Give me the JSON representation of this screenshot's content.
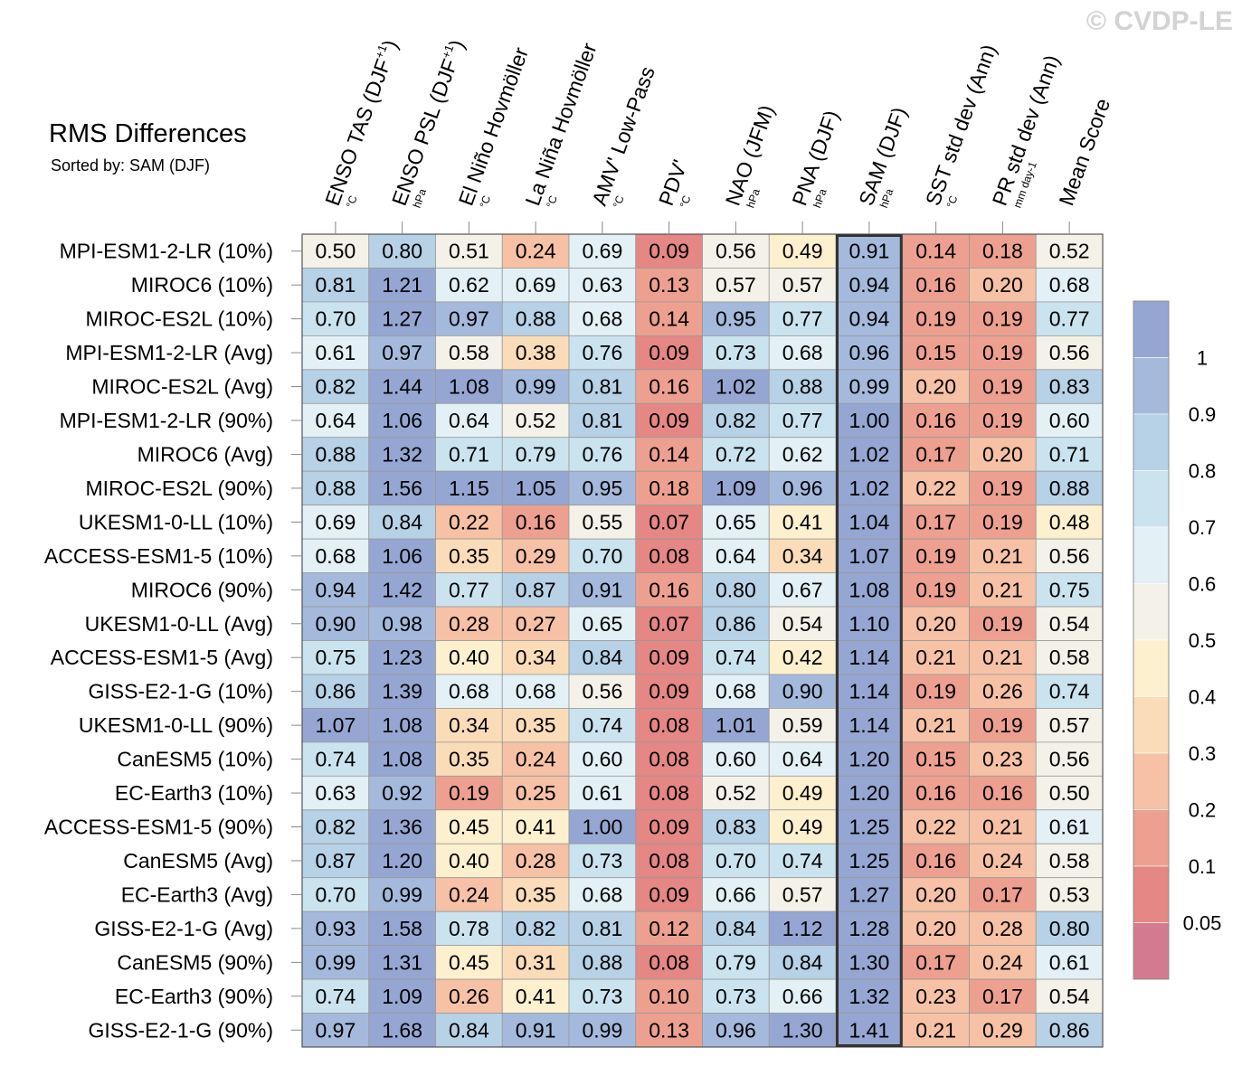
{
  "copyright": "© CVDP-LE",
  "chart_data": {
    "type": "heatmap",
    "title": "RMS Differences",
    "subtitle": "Sorted by: SAM (DJF)",
    "highlighted_column": "SAM (DJF)",
    "columns": [
      {
        "label": "ENSO TAS (DJF",
        "sup": "+1",
        "suffix": ")",
        "unit": "°C"
      },
      {
        "label": "ENSO PSL (DJF",
        "sup": "+1",
        "suffix": ")",
        "unit": "hPa"
      },
      {
        "label": "El Niño Hovmöller",
        "sup": "",
        "suffix": "",
        "unit": "°C"
      },
      {
        "label": "La Niña Hovmöller",
        "sup": "",
        "suffix": "",
        "unit": "°C"
      },
      {
        "label": "AMV' Low-Pass",
        "sup": "",
        "suffix": "",
        "unit": "°C"
      },
      {
        "label": "PDV'",
        "sup": "",
        "suffix": "",
        "unit": "°C"
      },
      {
        "label": "NAO (JFM)",
        "sup": "",
        "suffix": "",
        "unit": "hPa"
      },
      {
        "label": "PNA (DJF)",
        "sup": "",
        "suffix": "",
        "unit": "hPa"
      },
      {
        "label": "SAM (DJF)",
        "sup": "",
        "suffix": "",
        "unit": "hPa"
      },
      {
        "label": "SST std dev (Ann)",
        "sup": "",
        "suffix": "",
        "unit": "°C"
      },
      {
        "label": "PR std dev (Ann)",
        "sup": "",
        "suffix": "",
        "unit": "mm day-1"
      },
      {
        "label": "Mean Score",
        "sup": "",
        "suffix": "",
        "unit": ""
      }
    ],
    "rows": [
      "MPI-ESM1-2-LR (10%)",
      "MIROC6 (10%)",
      "MIROC-ES2L (10%)",
      "MPI-ESM1-2-LR (Avg)",
      "MIROC-ES2L (Avg)",
      "MPI-ESM1-2-LR (90%)",
      "MIROC6 (Avg)",
      "MIROC-ES2L (90%)",
      "UKESM1-0-LL (10%)",
      "ACCESS-ESM1-5 (10%)",
      "MIROC6 (90%)",
      "UKESM1-0-LL (Avg)",
      "ACCESS-ESM1-5 (Avg)",
      "GISS-E2-1-G (10%)",
      "UKESM1-0-LL (90%)",
      "CanESM5 (10%)",
      "EC-Earth3 (10%)",
      "ACCESS-ESM1-5 (90%)",
      "CanESM5 (Avg)",
      "EC-Earth3 (Avg)",
      "GISS-E2-1-G (Avg)",
      "CanESM5 (90%)",
      "EC-Earth3 (90%)",
      "GISS-E2-1-G (90%)"
    ],
    "values": [
      [
        "0.50",
        "0.80",
        "0.51",
        "0.24",
        "0.69",
        "0.09",
        "0.56",
        "0.49",
        "0.91",
        "0.14",
        "0.18",
        "0.52"
      ],
      [
        "0.81",
        "1.21",
        "0.62",
        "0.69",
        "0.63",
        "0.13",
        "0.57",
        "0.57",
        "0.94",
        "0.16",
        "0.20",
        "0.68"
      ],
      [
        "0.70",
        "1.27",
        "0.97",
        "0.88",
        "0.68",
        "0.14",
        "0.95",
        "0.77",
        "0.94",
        "0.19",
        "0.19",
        "0.77"
      ],
      [
        "0.61",
        "0.97",
        "0.58",
        "0.38",
        "0.76",
        "0.09",
        "0.73",
        "0.68",
        "0.96",
        "0.15",
        "0.19",
        "0.56"
      ],
      [
        "0.82",
        "1.44",
        "1.08",
        "0.99",
        "0.81",
        "0.16",
        "1.02",
        "0.88",
        "0.99",
        "0.20",
        "0.19",
        "0.83"
      ],
      [
        "0.64",
        "1.06",
        "0.64",
        "0.52",
        "0.81",
        "0.09",
        "0.82",
        "0.77",
        "1.00",
        "0.16",
        "0.19",
        "0.60"
      ],
      [
        "0.88",
        "1.32",
        "0.71",
        "0.79",
        "0.76",
        "0.14",
        "0.72",
        "0.62",
        "1.02",
        "0.17",
        "0.20",
        "0.71"
      ],
      [
        "0.88",
        "1.56",
        "1.15",
        "1.05",
        "0.95",
        "0.18",
        "1.09",
        "0.96",
        "1.02",
        "0.22",
        "0.19",
        "0.88"
      ],
      [
        "0.69",
        "0.84",
        "0.22",
        "0.16",
        "0.55",
        "0.07",
        "0.65",
        "0.41",
        "1.04",
        "0.17",
        "0.19",
        "0.48"
      ],
      [
        "0.68",
        "1.06",
        "0.35",
        "0.29",
        "0.70",
        "0.08",
        "0.64",
        "0.34",
        "1.07",
        "0.19",
        "0.21",
        "0.56"
      ],
      [
        "0.94",
        "1.42",
        "0.77",
        "0.87",
        "0.91",
        "0.16",
        "0.80",
        "0.67",
        "1.08",
        "0.19",
        "0.21",
        "0.75"
      ],
      [
        "0.90",
        "0.98",
        "0.28",
        "0.27",
        "0.65",
        "0.07",
        "0.86",
        "0.54",
        "1.10",
        "0.20",
        "0.19",
        "0.54"
      ],
      [
        "0.75",
        "1.23",
        "0.40",
        "0.34",
        "0.84",
        "0.09",
        "0.74",
        "0.42",
        "1.14",
        "0.21",
        "0.21",
        "0.58"
      ],
      [
        "0.86",
        "1.39",
        "0.68",
        "0.68",
        "0.56",
        "0.09",
        "0.68",
        "0.90",
        "1.14",
        "0.19",
        "0.26",
        "0.74"
      ],
      [
        "1.07",
        "1.08",
        "0.34",
        "0.35",
        "0.74",
        "0.08",
        "1.01",
        "0.59",
        "1.14",
        "0.21",
        "0.19",
        "0.57"
      ],
      [
        "0.74",
        "1.08",
        "0.35",
        "0.24",
        "0.60",
        "0.08",
        "0.60",
        "0.64",
        "1.20",
        "0.15",
        "0.23",
        "0.56"
      ],
      [
        "0.63",
        "0.92",
        "0.19",
        "0.25",
        "0.61",
        "0.08",
        "0.52",
        "0.49",
        "1.20",
        "0.16",
        "0.16",
        "0.50"
      ],
      [
        "0.82",
        "1.36",
        "0.45",
        "0.41",
        "1.00",
        "0.09",
        "0.83",
        "0.49",
        "1.25",
        "0.22",
        "0.21",
        "0.61"
      ],
      [
        "0.87",
        "1.20",
        "0.40",
        "0.28",
        "0.73",
        "0.08",
        "0.70",
        "0.74",
        "1.25",
        "0.16",
        "0.24",
        "0.58"
      ],
      [
        "0.70",
        "0.99",
        "0.24",
        "0.35",
        "0.68",
        "0.09",
        "0.66",
        "0.57",
        "1.27",
        "0.20",
        "0.17",
        "0.53"
      ],
      [
        "0.93",
        "1.58",
        "0.78",
        "0.82",
        "0.81",
        "0.12",
        "0.84",
        "1.12",
        "1.28",
        "0.20",
        "0.28",
        "0.80"
      ],
      [
        "0.99",
        "1.31",
        "0.45",
        "0.31",
        "0.88",
        "0.08",
        "0.79",
        "0.84",
        "1.30",
        "0.17",
        "0.24",
        "0.61"
      ],
      [
        "0.74",
        "1.09",
        "0.26",
        "0.41",
        "0.73",
        "0.10",
        "0.73",
        "0.66",
        "1.32",
        "0.23",
        "0.17",
        "0.54"
      ],
      [
        "0.97",
        "1.68",
        "0.84",
        "0.91",
        "0.99",
        "0.13",
        "0.96",
        "1.30",
        "1.41",
        "0.21",
        "0.29",
        "0.86"
      ]
    ],
    "colorbar": {
      "labels": [
        "1",
        "0.9",
        "0.8",
        "0.7",
        "0.6",
        "0.5",
        "0.4",
        "0.3",
        "0.2",
        "0.1",
        "0.05"
      ],
      "thresholds": [
        0.05,
        0.1,
        0.2,
        0.3,
        0.4,
        0.5,
        0.6,
        0.7,
        0.8,
        0.9,
        1
      ],
      "colors": [
        "#d47a8f",
        "#e48785",
        "#eda090",
        "#f6c1a5",
        "#fbdcb9",
        "#fdf0cf",
        "#f4f2e8",
        "#e3f0f5",
        "#cae3ef",
        "#b7d1e6",
        "#a4b9dc",
        "#95a6d2"
      ]
    }
  }
}
